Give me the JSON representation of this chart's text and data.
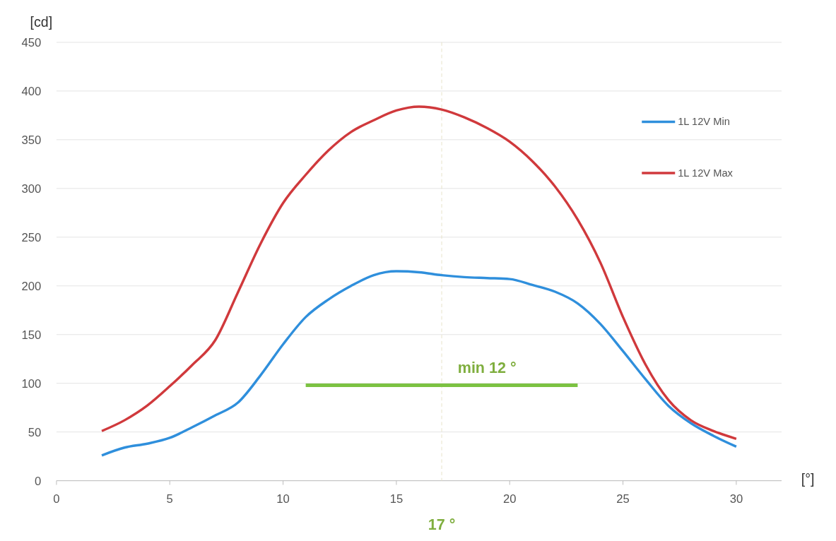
{
  "chart_data": {
    "type": "line",
    "xlabel": "[°]",
    "ylabel": "[cd]",
    "x": [
      2,
      3,
      4,
      5,
      6,
      7,
      8,
      9,
      10,
      11,
      12,
      13,
      14,
      15,
      16,
      17,
      18,
      19,
      20,
      21,
      22,
      23,
      24,
      25,
      26,
      27,
      28,
      29,
      30
    ],
    "series": [
      {
        "name": "1L 12V Min",
        "color": "#2f8fdc",
        "values": [
          26,
          34,
          38,
          44,
          55,
          67,
          80,
          108,
          140,
          168,
          186,
          200,
          211,
          215,
          214,
          211,
          209,
          208,
          207,
          201,
          194,
          182,
          161,
          133,
          104,
          77,
          59,
          46,
          35
        ]
      },
      {
        "name": "1L 12V Max",
        "color": "#d0393c",
        "values": [
          51,
          62,
          77,
          97,
          119,
          144,
          193,
          243,
          285,
          314,
          339,
          358,
          370,
          380,
          384,
          381,
          373,
          362,
          348,
          328,
          302,
          268,
          224,
          168,
          119,
          83,
          62,
          51,
          43
        ]
      },
      {
        "type": "line",
        "color": "#7cc242",
        "x": [
          11,
          23
        ],
        "values": [
          98,
          98
        ]
      }
    ],
    "annotations": [
      {
        "text": "min 12 °",
        "x": 19,
        "y": 98
      }
    ],
    "ref_lines": [
      {
        "axis": "x",
        "value": 17,
        "label": "17 °",
        "color": "#e6e2c8",
        "line_style": "dashed"
      }
    ],
    "xlim": [
      0,
      32
    ],
    "xticks": [
      0,
      5,
      10,
      15,
      20,
      25,
      30
    ],
    "ylim": [
      0,
      450
    ],
    "yticks": [
      0,
      50,
      100,
      150,
      200,
      250,
      300,
      350,
      400,
      450
    ],
    "grid": "y",
    "legend": "top right"
  }
}
